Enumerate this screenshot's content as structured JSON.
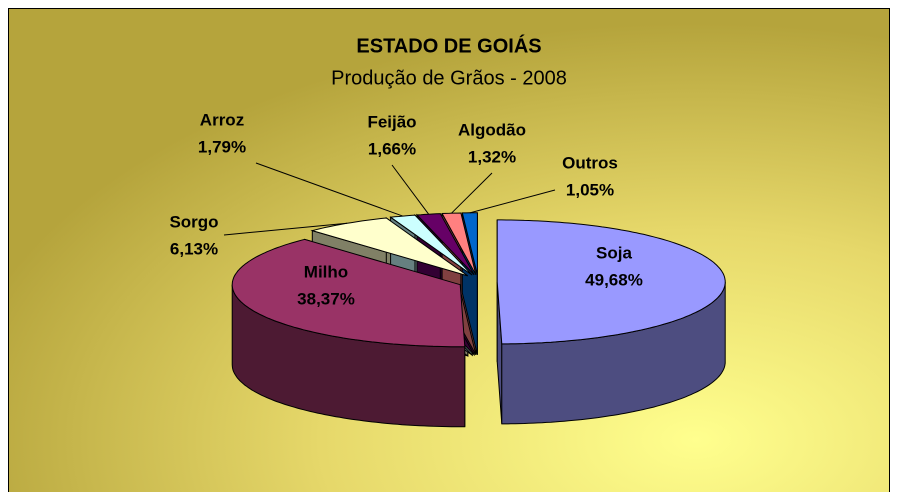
{
  "chart_data": {
    "type": "pie3d",
    "title": "ESTADO DE GOIÁS",
    "subtitle": "Produção de Grãos - 2008",
    "categories": [
      "Soja",
      "Milho",
      "Sorgo",
      "Arroz",
      "Feijão",
      "Algodão",
      "Outros"
    ],
    "values": [
      49.68,
      38.37,
      6.13,
      1.79,
      1.66,
      1.32,
      1.05
    ],
    "value_labels": [
      "49,68%",
      "38,37%",
      "6,13%",
      "1,79%",
      "1,66%",
      "1,32%",
      "1,05%"
    ],
    "colors": [
      "#9999ff",
      "#993366",
      "#ffffcc",
      "#ccffff",
      "#660066",
      "#ff8080",
      "#0066cc"
    ]
  }
}
